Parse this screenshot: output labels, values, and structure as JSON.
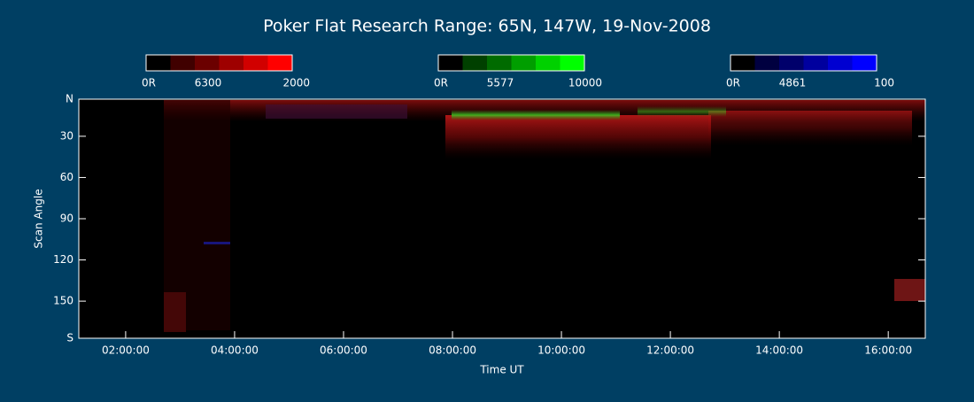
{
  "chart_data": {
    "type": "keogram",
    "title": "Poker Flat Research Range: 65N, 147W, 19-Nov-2008",
    "xlabel": "Time UT",
    "ylabel": "Scan Angle",
    "xlim": [
      1.14,
      16.68
    ],
    "xticks": [
      {
        "value": 2,
        "label": "02:00:00"
      },
      {
        "value": 4,
        "label": "04:00:00"
      },
      {
        "value": 6,
        "label": "06:00:00"
      },
      {
        "value": 8,
        "label": "08:00:00"
      },
      {
        "value": 10,
        "label": "10:00:00"
      },
      {
        "value": 12,
        "label": "12:00:00"
      },
      {
        "value": 14,
        "label": "14:00:00"
      },
      {
        "value": 16,
        "label": "16:00:00"
      }
    ],
    "ylim": [
      3,
      177
    ],
    "yticks": [
      {
        "value": 3,
        "label": "N"
      },
      30,
      60,
      90,
      120,
      150,
      {
        "value": 177,
        "label": "S"
      }
    ],
    "colorbars": [
      {
        "name": "6300",
        "color": "#ff0000",
        "ticks": [
          {
            "value": 0,
            "label": "0R"
          },
          2000
        ]
      },
      {
        "name": "5577",
        "color": "#00ff00",
        "ticks": [
          {
            "value": 0,
            "label": "0R"
          },
          10000
        ]
      },
      {
        "name": "4861",
        "color": "#0000ff",
        "ticks": [
          {
            "value": 0,
            "label": "0R"
          },
          100
        ]
      }
    ]
  }
}
